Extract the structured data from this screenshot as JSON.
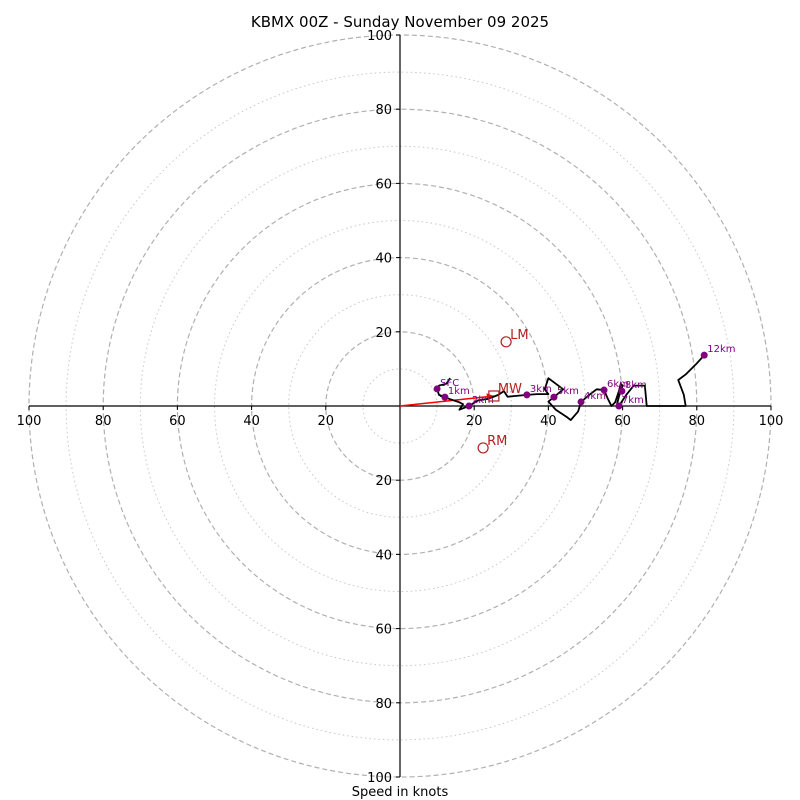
{
  "chart_data": {
    "type": "line",
    "subtype": "hodograph",
    "title": "KBMX 00Z - Sunday November 09 2025",
    "xlabel": "Speed in knots",
    "ylabel": "",
    "rmax": 100,
    "rings_major": [
      20,
      40,
      60,
      80,
      100
    ],
    "rings_minor": [
      10,
      30,
      50,
      70,
      90
    ],
    "tick_labels": {
      "left": [
        "100",
        "80",
        "60",
        "40",
        "20"
      ],
      "right": [
        "20",
        "40",
        "60",
        "80",
        "100"
      ],
      "top": [
        "20",
        "40",
        "60",
        "80",
        "100"
      ],
      "bottom": [
        "20",
        "40",
        "60",
        "80",
        "100"
      ]
    },
    "grid": true,
    "colors": {
      "trace": "#000000",
      "height_marker": "#800080",
      "storm_motion": "#b22222",
      "shear_vector": "#ff0000",
      "ring_major": "#b0b0b0",
      "ring_minor": "#c8c8c8"
    },
    "trace": [
      [
        13.5,
        7.5
      ],
      [
        12.5,
        6
      ],
      [
        10.5,
        5.5
      ],
      [
        10,
        4.6
      ],
      [
        10.5,
        3
      ],
      [
        12.1,
        2.4
      ],
      [
        11,
        2.7
      ],
      [
        13,
        2
      ],
      [
        16,
        1
      ],
      [
        17,
        0.5
      ],
      [
        16,
        -1
      ],
      [
        18.6,
        0
      ],
      [
        21,
        1.5
      ],
      [
        24,
        2
      ],
      [
        26.5,
        3
      ],
      [
        28,
        4
      ],
      [
        29,
        2.5
      ],
      [
        31,
        2.7
      ],
      [
        34.2,
        3
      ],
      [
        37,
        3.2
      ],
      [
        40,
        3.2
      ],
      [
        39,
        4.5
      ],
      [
        40,
        7.5
      ],
      [
        44,
        4.5
      ],
      [
        41.5,
        2.4
      ],
      [
        40,
        1.2
      ],
      [
        42,
        -1
      ],
      [
        45,
        -3
      ],
      [
        46,
        -3.8
      ],
      [
        48,
        -1.5
      ],
      [
        48.8,
        1.1
      ],
      [
        51,
        3
      ],
      [
        53,
        4.5
      ],
      [
        55,
        4.3
      ],
      [
        56,
        2
      ],
      [
        57,
        0
      ],
      [
        58,
        1
      ],
      [
        59,
        4
      ],
      [
        59.5,
        6
      ],
      [
        60,
        5.5
      ],
      [
        59,
        2.5
      ],
      [
        58.5,
        0.5
      ],
      [
        59,
        0
      ],
      [
        60,
        1.5
      ],
      [
        61,
        3
      ],
      [
        63,
        5.5
      ],
      [
        66,
        5.5
      ],
      [
        66.5,
        0
      ],
      [
        77,
        0
      ],
      [
        76.5,
        3
      ],
      [
        75,
        7
      ],
      [
        77,
        8.5
      ],
      [
        80,
        11.5
      ],
      [
        82,
        13.7
      ]
    ],
    "height_markers": [
      {
        "label": "SFC",
        "u": 10,
        "v": 4.6
      },
      {
        "label": "1km",
        "u": 12.1,
        "v": 2.4
      },
      {
        "label": "2km",
        "u": 18.6,
        "v": 0
      },
      {
        "label": "3km",
        "u": 34.2,
        "v": 3
      },
      {
        "label": "4km",
        "u": 48.8,
        "v": 1.1
      },
      {
        "label": "5km",
        "u": 41.5,
        "v": 2.4
      },
      {
        "label": "6km",
        "u": 55,
        "v": 4.3
      },
      {
        "label": "7km",
        "u": 59,
        "v": 0
      },
      {
        "label": "8km",
        "u": 59.8,
        "v": 4
      },
      {
        "label": "12km",
        "u": 82,
        "v": 13.7
      }
    ],
    "storm_motions": [
      {
        "label": "LM",
        "u": 28.6,
        "v": 17.3,
        "marker": "circle"
      },
      {
        "label": "RM",
        "u": 22.4,
        "v": -11.3,
        "marker": "circle"
      },
      {
        "label": "MW",
        "u": 25.3,
        "v": 2.7,
        "marker": "square"
      }
    ],
    "shear_vector": {
      "from": [
        0,
        0
      ],
      "to": [
        25.3,
        2.7
      ]
    }
  }
}
